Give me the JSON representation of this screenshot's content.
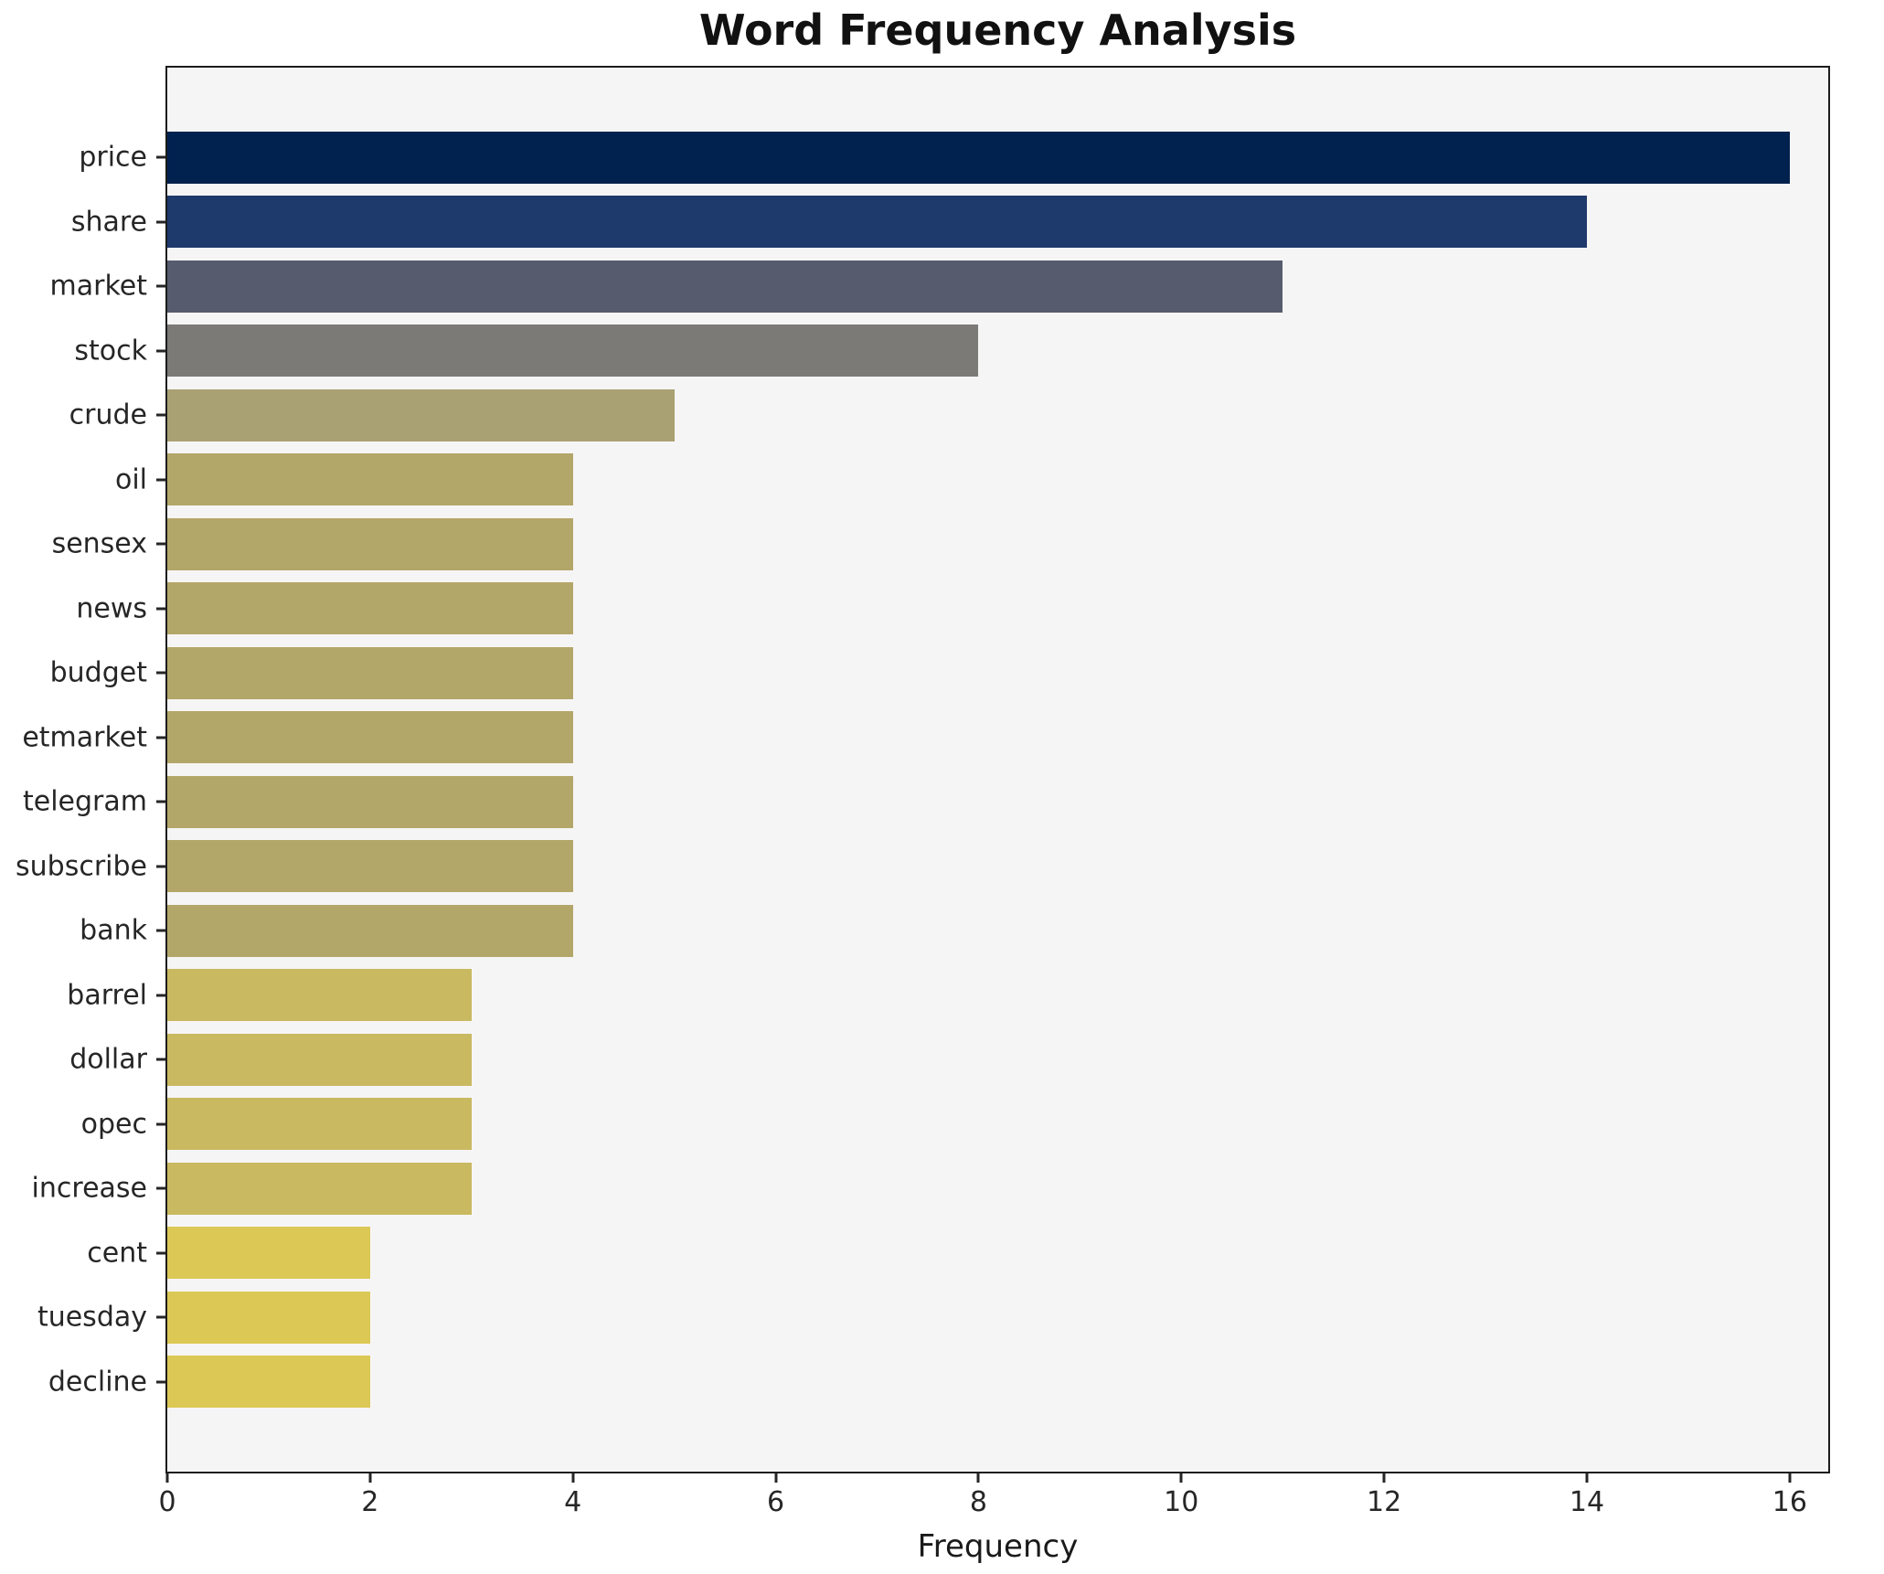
{
  "chart_data": {
    "type": "bar",
    "orientation": "horizontal",
    "title": "Word Frequency Analysis",
    "xlabel": "Frequency",
    "ylabel": "",
    "categories": [
      "price",
      "share",
      "market",
      "stock",
      "crude",
      "oil",
      "sensex",
      "news",
      "budget",
      "etmarket",
      "telegram",
      "subscribe",
      "bank",
      "barrel",
      "dollar",
      "opec",
      "increase",
      "cent",
      "tuesday",
      "decline"
    ],
    "values": [
      16,
      14,
      11,
      8,
      5,
      4,
      4,
      4,
      4,
      4,
      4,
      4,
      4,
      3,
      3,
      3,
      3,
      2,
      2,
      2
    ],
    "bar_colors": [
      "#01224E",
      "#1E3A6D",
      "#565C6D",
      "#7B7A77",
      "#A9A173",
      "#B3A669",
      "#B3A669",
      "#B3A669",
      "#B3A669",
      "#B3A669",
      "#B3A669",
      "#B3A669",
      "#B3A669",
      "#C9B960",
      "#C9B960",
      "#C9B960",
      "#C9B960",
      "#DBC855",
      "#DBC855",
      "#DBC855"
    ],
    "xticks": [
      0,
      2,
      4,
      6,
      8,
      10,
      12,
      14,
      16
    ],
    "xlim": [
      0,
      16.38
    ],
    "grid": false,
    "legend": "none",
    "plot_background": "#f6f5f5",
    "figure_background": "#ffffff",
    "spine_color": "#1c1c1c"
  }
}
